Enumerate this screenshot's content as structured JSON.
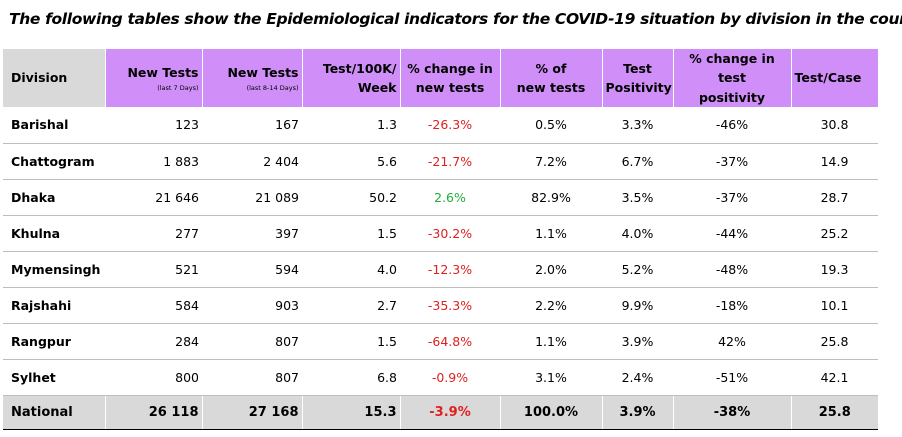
{
  "caption": "The following tables show the Epidemiological indicators for the COVID-19 situation by division in the country.",
  "headers": {
    "division": "Division",
    "new_tests_7": "New Tests",
    "new_tests_7_sub": "(last 7 Days)",
    "new_tests_8_14": "New Tests",
    "new_tests_8_14_sub": "(last 8-14 Days)",
    "test_per_100k_line1": "Test/100K/",
    "test_per_100k_line2": "Week",
    "pct_change_tests_line1": "% change in",
    "pct_change_tests_line2": "new tests",
    "pct_new_tests_line1": "% of",
    "pct_new_tests_line2": "new tests",
    "positivity_line1": "Test",
    "positivity_line2": "Positivity",
    "pct_change_positivity_line1": "% change in test",
    "pct_change_positivity_line2": "positivity",
    "test_per_case": "Test/Case"
  },
  "rows": [
    {
      "division": "Barishal",
      "new_tests_7": "123",
      "new_tests_8_14": "167",
      "test_per_100k": "1.3",
      "pct_change_tests": "-26.3%",
      "pct_new_tests": "0.5%",
      "positivity": "3.3%",
      "pct_change_positivity": "-46%",
      "test_per_case": "30.8"
    },
    {
      "division": "Chattogram",
      "new_tests_7": "1 883",
      "new_tests_8_14": "2 404",
      "test_per_100k": "5.6",
      "pct_change_tests": "-21.7%",
      "pct_new_tests": "7.2%",
      "positivity": "6.7%",
      "pct_change_positivity": "-37%",
      "test_per_case": "14.9"
    },
    {
      "division": "Dhaka",
      "new_tests_7": "21 646",
      "new_tests_8_14": "21 089",
      "test_per_100k": "50.2",
      "pct_change_tests": "2.6%",
      "pct_new_tests": "82.9%",
      "positivity": "3.5%",
      "pct_change_positivity": "-37%",
      "test_per_case": "28.7"
    },
    {
      "division": "Khulna",
      "new_tests_7": "277",
      "new_tests_8_14": "397",
      "test_per_100k": "1.5",
      "pct_change_tests": "-30.2%",
      "pct_new_tests": "1.1%",
      "positivity": "4.0%",
      "pct_change_positivity": "-44%",
      "test_per_case": "25.2"
    },
    {
      "division": "Mymensingh",
      "new_tests_7": "521",
      "new_tests_8_14": "594",
      "test_per_100k": "4.0",
      "pct_change_tests": "-12.3%",
      "pct_new_tests": "2.0%",
      "positivity": "5.2%",
      "pct_change_positivity": "-48%",
      "test_per_case": "19.3"
    },
    {
      "division": "Rajshahi",
      "new_tests_7": "584",
      "new_tests_8_14": "903",
      "test_per_100k": "2.7",
      "pct_change_tests": "-35.3%",
      "pct_new_tests": "2.2%",
      "positivity": "9.9%",
      "pct_change_positivity": "-18%",
      "test_per_case": "10.1"
    },
    {
      "division": "Rangpur",
      "new_tests_7": "284",
      "new_tests_8_14": "807",
      "test_per_100k": "1.5",
      "pct_change_tests": "-64.8%",
      "pct_new_tests": "1.1%",
      "positivity": "3.9%",
      "pct_change_positivity": "42%",
      "test_per_case": "25.8"
    },
    {
      "division": "Sylhet",
      "new_tests_7": "800",
      "new_tests_8_14": "807",
      "test_per_100k": "6.8",
      "pct_change_tests": "-0.9%",
      "pct_new_tests": "3.1%",
      "positivity": "2.4%",
      "pct_change_positivity": "-51%",
      "test_per_case": "42.1"
    }
  ],
  "national": {
    "division": "National",
    "new_tests_7": "26 118",
    "new_tests_8_14": "27 168",
    "test_per_100k": "15.3",
    "pct_change_tests": "-3.9%",
    "pct_new_tests": "100.0%",
    "positivity": "3.9%",
    "pct_change_positivity": "-38%",
    "test_per_case": "25.8"
  },
  "colors": {
    "header_purple": "#d08ef8",
    "header_gray": "#d9d9d9",
    "negative_red": "#e02020",
    "positive_green": "#1eae3c"
  }
}
